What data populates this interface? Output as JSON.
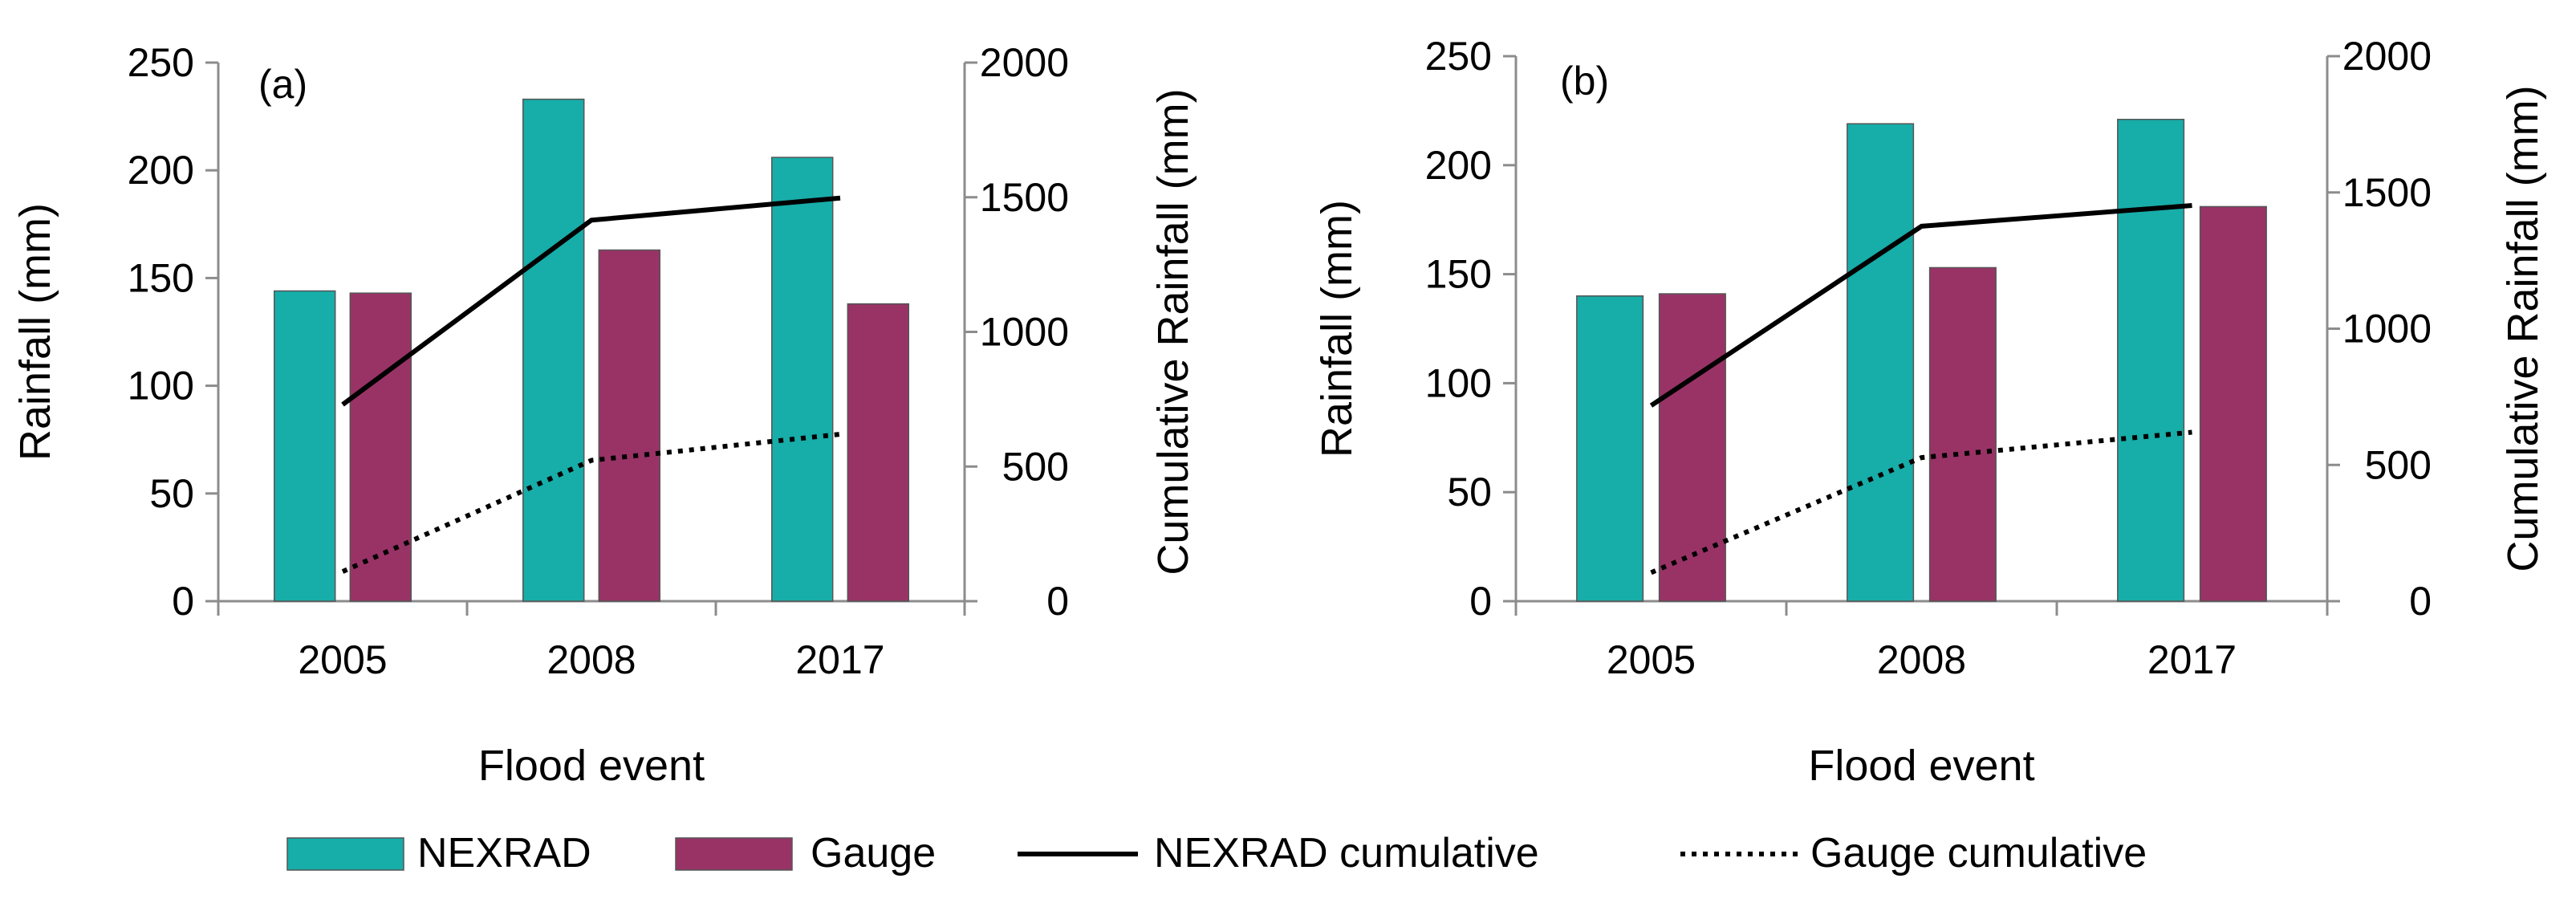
{
  "legend": {
    "items": [
      {
        "label": "NEXRAD",
        "kind": "bar",
        "color": "#17ADA9"
      },
      {
        "label": "Gauge",
        "kind": "bar",
        "color": "#993366"
      },
      {
        "label": "NEXRAD cumulative",
        "kind": "line-solid",
        "color": "#000000"
      },
      {
        "label": "Gauge cumulative",
        "kind": "line-dotted",
        "color": "#000000"
      }
    ]
  },
  "colors": {
    "nexrad": "#17ADA9",
    "gauge": "#993366",
    "cumulative": "#000000"
  },
  "chart_data": [
    {
      "type": "bar",
      "panel_label": "(a)",
      "categories": [
        "2005",
        "2008",
        "2017"
      ],
      "xlabel": "Flood event",
      "ylabel": "Rainfall (mm)",
      "ylabel_right": "Cumulative Rainfall (mm)",
      "ylim": [
        0,
        250
      ],
      "yticks": [
        0,
        50,
        100,
        150,
        200,
        250
      ],
      "ylim_right": [
        0,
        2000
      ],
      "yticks_right": [
        0,
        500,
        1000,
        1500,
        2000
      ],
      "grid": false,
      "legend_position": "bottom",
      "series": [
        {
          "name": "NEXRAD",
          "axis": "left",
          "values": [
            144,
            233,
            206
          ]
        },
        {
          "name": "Gauge",
          "axis": "left",
          "values": [
            143,
            163,
            138
          ]
        }
      ],
      "line_series": [
        {
          "name": "NEXRAD cumulative",
          "axis": "right",
          "style": "solid",
          "values": [
            730,
            1415,
            1497
          ]
        },
        {
          "name": "Gauge cumulative",
          "axis": "right",
          "style": "dotted",
          "values": [
            110,
            523,
            620
          ]
        }
      ]
    },
    {
      "type": "bar",
      "panel_label": "(b)",
      "categories": [
        "2005",
        "2008",
        "2017"
      ],
      "xlabel": "Flood event",
      "ylabel": "Rainfall (mm)",
      "ylabel_right": "Cumulative Rainfall (mm)",
      "ylim": [
        0,
        250
      ],
      "yticks": [
        0,
        50,
        100,
        150,
        200,
        250
      ],
      "ylim_right": [
        0,
        2000
      ],
      "yticks_right": [
        0,
        500,
        1000,
        1500,
        2000
      ],
      "grid": false,
      "legend_position": "bottom",
      "series": [
        {
          "name": "NEXRAD",
          "axis": "left",
          "values": [
            140,
            219,
            221
          ]
        },
        {
          "name": "Gauge",
          "axis": "left",
          "values": [
            141,
            153,
            181
          ]
        }
      ],
      "line_series": [
        {
          "name": "NEXRAD cumulative",
          "axis": "right",
          "style": "solid",
          "values": [
            718,
            1376,
            1452
          ]
        },
        {
          "name": "Gauge cumulative",
          "axis": "right",
          "style": "dotted",
          "values": [
            105,
            527,
            620
          ]
        }
      ]
    }
  ]
}
